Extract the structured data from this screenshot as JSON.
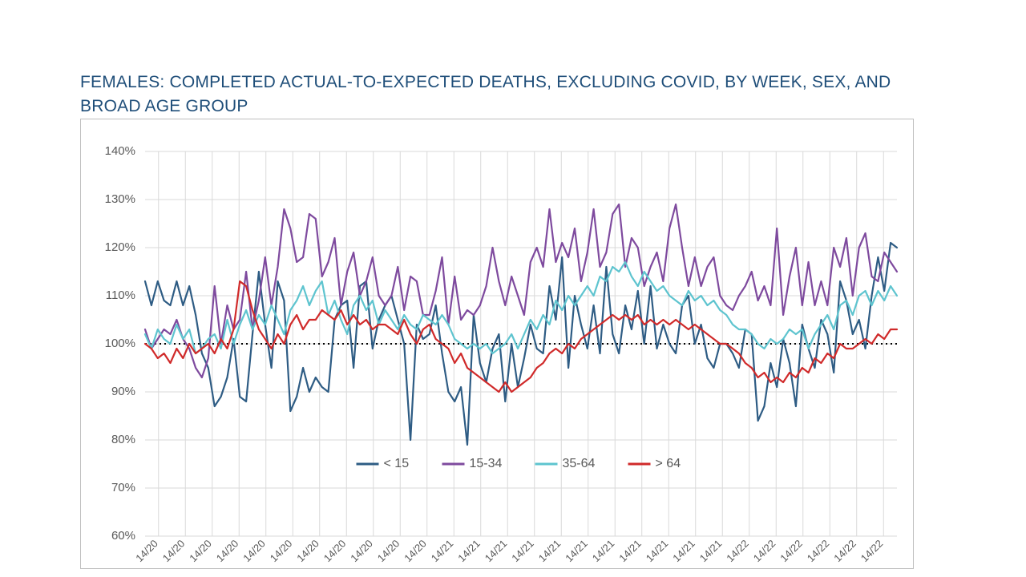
{
  "title": "FEMALES: COMPLETED ACTUAL-TO-EXPECTED DEATHS, EXCLUDING COVID, BY WEEK, SEX, AND BROAD AGE GROUP",
  "title_color": "#1f4e79",
  "title_fontsize": 21,
  "chart": {
    "type": "line",
    "background_color": "#ffffff",
    "border_color": "#bfbfbf",
    "grid_color": "#d9d9d9",
    "tick_label_color": "#595959",
    "ylim": [
      60,
      140
    ],
    "ytick_step": 10,
    "ytick_suffix": "%",
    "reference_line": {
      "y": 100,
      "color": "#000000",
      "dash": "2 4",
      "width": 2
    },
    "n_points": 120,
    "x_labels_visible": [
      "14/20",
      "14/20",
      "14/20",
      "14/20",
      "14/20",
      "14/20",
      "14/20",
      "14/20",
      "14/20",
      "14/20",
      "14/20",
      "14/21",
      "14/21",
      "14/21",
      "14/21",
      "14/21",
      "14/21",
      "14/21",
      "14/21",
      "14/21",
      "14/21",
      "14/21",
      "14/22",
      "14/22",
      "14/22",
      "14/22",
      "14/22",
      "14/22"
    ],
    "x_label_rotation": -45,
    "line_width": 2.2,
    "legend": {
      "position": "bottom-center",
      "items": [
        {
          "label": "< 15",
          "color": "#2e5c84"
        },
        {
          "label": "15-34",
          "color": "#7e4a9e"
        },
        {
          "label": "35-64",
          "color": "#5ec4cf"
        },
        {
          "label": "> 64",
          "color": "#d02a2a"
        }
      ],
      "line_length": 28,
      "fontsize": 16
    },
    "series": [
      {
        "name": "< 15",
        "color": "#2e5c84",
        "values": [
          113,
          108,
          113,
          109,
          108,
          113,
          108,
          112,
          106,
          98,
          95,
          87,
          89,
          93,
          101,
          89,
          88,
          102,
          115,
          104,
          95,
          113,
          109,
          86,
          89,
          95,
          90,
          93,
          91,
          90,
          105,
          108,
          109,
          95,
          112,
          113,
          99,
          105,
          108,
          110,
          105,
          100,
          80,
          104,
          101,
          102,
          108,
          98,
          90,
          88,
          91,
          79,
          106,
          96,
          92,
          99,
          102,
          88,
          100,
          91,
          97,
          104,
          99,
          98,
          112,
          105,
          118,
          95,
          110,
          104,
          99,
          108,
          98,
          116,
          102,
          98,
          108,
          103,
          111,
          100,
          112,
          99,
          104,
          100,
          98,
          108,
          110,
          100,
          104,
          97,
          95,
          100,
          100,
          98,
          95,
          103,
          102,
          84,
          87,
          96,
          91,
          101,
          96,
          87,
          104,
          99,
          95,
          105,
          102,
          94,
          113,
          109,
          102,
          105,
          99,
          110,
          118,
          111,
          121,
          120
        ]
      },
      {
        "name": "15-34",
        "color": "#7e4a9e",
        "values": [
          103,
          99,
          101,
          103,
          102,
          105,
          101,
          99,
          95,
          93,
          97,
          112,
          100,
          108,
          103,
          105,
          115,
          103,
          109,
          118,
          108,
          116,
          128,
          124,
          117,
          118,
          127,
          126,
          114,
          117,
          122,
          108,
          115,
          119,
          110,
          113,
          118,
          110,
          108,
          110,
          116,
          107,
          114,
          113,
          106,
          106,
          111,
          118,
          104,
          114,
          105,
          107,
          106,
          108,
          112,
          120,
          113,
          108,
          114,
          110,
          106,
          117,
          120,
          116,
          128,
          117,
          121,
          118,
          124,
          113,
          119,
          128,
          116,
          119,
          127,
          129,
          116,
          122,
          120,
          112,
          116,
          119,
          113,
          124,
          129,
          120,
          112,
          118,
          112,
          116,
          118,
          110,
          108,
          107,
          110,
          112,
          115,
          109,
          112,
          108,
          124,
          106,
          114,
          120,
          108,
          117,
          108,
          113,
          108,
          120,
          116,
          122,
          110,
          120,
          123,
          114,
          113,
          119,
          117,
          115
        ]
      },
      {
        "name": "35-64",
        "color": "#5ec4cf",
        "values": [
          102,
          99,
          103,
          101,
          100,
          104,
          101,
          103,
          98,
          99,
          101,
          102,
          99,
          105,
          100,
          104,
          107,
          103,
          106,
          104,
          108,
          105,
          102,
          107,
          109,
          112,
          108,
          111,
          113,
          106,
          109,
          105,
          102,
          108,
          110,
          107,
          109,
          104,
          107,
          105,
          103,
          106,
          104,
          103,
          106,
          105,
          104,
          106,
          104,
          101,
          100,
          99,
          100,
          99,
          100,
          98,
          99,
          100,
          102,
          99,
          102,
          105,
          103,
          106,
          104,
          109,
          107,
          110,
          108,
          110,
          112,
          110,
          114,
          113,
          116,
          115,
          117,
          114,
          112,
          115,
          113,
          111,
          112,
          110,
          109,
          108,
          111,
          109,
          110,
          108,
          109,
          107,
          106,
          104,
          103,
          103,
          102,
          100,
          99,
          101,
          100,
          101,
          103,
          102,
          103,
          99,
          102,
          104,
          106,
          103,
          108,
          109,
          106,
          110,
          111,
          108,
          111,
          109,
          112,
          110
        ]
      },
      {
        "name": "> 64",
        "color": "#d02a2a",
        "values": [
          100,
          99,
          97,
          98,
          96,
          99,
          97,
          100,
          98,
          99,
          100,
          98,
          101,
          99,
          103,
          113,
          112,
          107,
          103,
          101,
          99,
          102,
          100,
          104,
          106,
          103,
          105,
          105,
          107,
          106,
          105,
          107,
          104,
          106,
          104,
          105,
          103,
          104,
          104,
          103,
          102,
          105,
          102,
          100,
          103,
          104,
          101,
          100,
          99,
          96,
          98,
          95,
          94,
          93,
          92,
          91,
          90,
          92,
          90,
          91,
          92,
          93,
          95,
          96,
          98,
          99,
          98,
          100,
          99,
          101,
          102,
          103,
          104,
          105,
          106,
          105,
          106,
          105,
          106,
          104,
          105,
          104,
          105,
          104,
          105,
          104,
          103,
          104,
          103,
          102,
          101,
          100,
          100,
          99,
          98,
          96,
          95,
          93,
          94,
          92,
          93,
          92,
          94,
          93,
          95,
          94,
          97,
          96,
          98,
          97,
          100,
          99,
          99,
          100,
          101,
          100,
          102,
          101,
          103,
          103
        ]
      }
    ]
  }
}
